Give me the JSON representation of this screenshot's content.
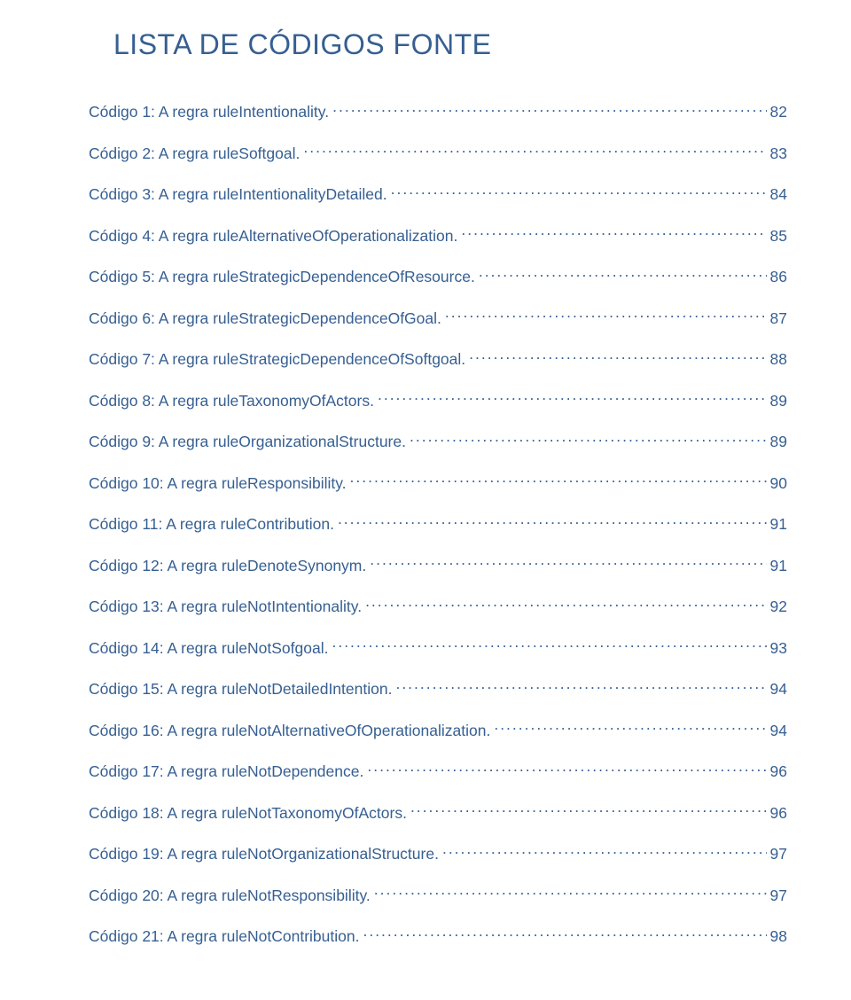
{
  "colors": {
    "text": "#365f91",
    "background": "#ffffff"
  },
  "typography": {
    "title_fontsize": 32,
    "entry_fontsize": 17.5,
    "font_family": "Arial"
  },
  "title": "LISTA DE CÓDIGOS FONTE",
  "toc_entries": [
    {
      "label": "Código 1: A regra ruleIntentionality.",
      "page": "82"
    },
    {
      "label": "Código 2: A regra ruleSoftgoal.",
      "page": "83"
    },
    {
      "label": "Código 3: A regra ruleIntentionalityDetailed.",
      "page": "84"
    },
    {
      "label": "Código 4: A regra ruleAlternativeOfOperationalization.",
      "page": "85"
    },
    {
      "label": "Código 5: A regra ruleStrategicDependenceOfResource.",
      "page": "86"
    },
    {
      "label": "Código 6: A regra ruleStrategicDependenceOfGoal.",
      "page": "87"
    },
    {
      "label": "Código 7: A regra ruleStrategicDependenceOfSoftgoal.",
      "page": "88"
    },
    {
      "label": "Código 8: A regra ruleTaxonomyOfActors.",
      "page": "89"
    },
    {
      "label": "Código 9: A regra ruleOrganizationalStructure.",
      "page": "89"
    },
    {
      "label": "Código 10: A regra ruleResponsibility.",
      "page": "90"
    },
    {
      "label": "Código 11: A regra ruleContribution.",
      "page": "91"
    },
    {
      "label": "Código 12: A regra ruleDenoteSynonym.",
      "page": "91"
    },
    {
      "label": "Código 13: A regra ruleNotIntentionality.",
      "page": "92"
    },
    {
      "label": "Código 14: A regra ruleNotSofgoal.",
      "page": "93"
    },
    {
      "label": "Código 15: A regra ruleNotDetailedIntention.",
      "page": "94"
    },
    {
      "label": "Código 16: A regra ruleNotAlternativeOfOperationalization.",
      "page": "94"
    },
    {
      "label": "Código 17: A regra ruleNotDependence.",
      "page": "96"
    },
    {
      "label": "Código 18: A regra ruleNotTaxonomyOfActors.",
      "page": "96"
    },
    {
      "label": "Código 19: A regra ruleNotOrganizationalStructure.",
      "page": "97"
    },
    {
      "label": "Código 20: A regra ruleNotResponsibility.",
      "page": "97"
    },
    {
      "label": "Código 21: A regra ruleNotContribution.",
      "page": "98"
    }
  ]
}
